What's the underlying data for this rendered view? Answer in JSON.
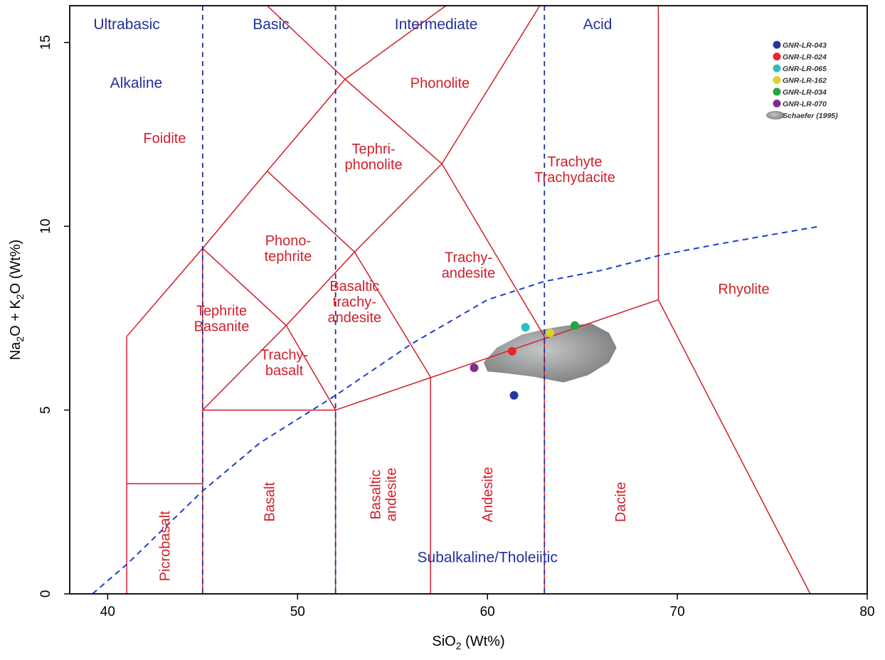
{
  "chart_data": {
    "type": "scatter",
    "title": "",
    "xlabel": {
      "base": "SiO",
      "sub": "2",
      "unit": " (Wt%)"
    },
    "ylabel": {
      "p1": "Na",
      "s1": "2",
      "p2": "O + K",
      "s2": "2",
      "p3": "O (Wt%)"
    },
    "xlim": [
      38,
      80
    ],
    "ylim": [
      0,
      16
    ],
    "xticks": [
      40,
      50,
      60,
      70,
      80
    ],
    "yticks": [
      0,
      5,
      10,
      15
    ],
    "grid": false,
    "legend_position": "top-right",
    "series": [
      {
        "name": "GNR-LR-043",
        "color": "#23389e",
        "x": 61.4,
        "y": 5.4
      },
      {
        "name": "GNR-LR-024",
        "color": "#e8262b",
        "x": 61.3,
        "y": 6.6
      },
      {
        "name": "GNR-LR-065",
        "color": "#2bbcc4",
        "x": 62.0,
        "y": 7.25
      },
      {
        "name": "GNR-LR-162",
        "color": "#d8d42c",
        "x": 63.3,
        "y": 7.1
      },
      {
        "name": "GNR-LR-034",
        "color": "#22a83c",
        "x": 64.6,
        "y": 7.3
      },
      {
        "name": "GNR-LR-070",
        "color": "#7a2f94",
        "x": 59.3,
        "y": 6.15
      }
    ],
    "reference_field": {
      "name": "Schaefer (1995)",
      "color": "#7d7f80",
      "polygon": [
        [
          59.8,
          6.3
        ],
        [
          60.5,
          6.7
        ],
        [
          61.8,
          7.05
        ],
        [
          63.0,
          7.2
        ],
        [
          64.2,
          7.3
        ],
        [
          65.5,
          7.35
        ],
        [
          66.4,
          7.1
        ],
        [
          66.8,
          6.7
        ],
        [
          66.4,
          6.3
        ],
        [
          65.3,
          5.95
        ],
        [
          64.0,
          5.75
        ],
        [
          62.5,
          5.9
        ],
        [
          61.0,
          6.0
        ],
        [
          60.0,
          6.05
        ]
      ]
    },
    "alkaline_subalkaline_divide": [
      [
        39.2,
        0
      ],
      [
        41,
        0.8
      ],
      [
        43,
        1.8
      ],
      [
        45,
        2.8
      ],
      [
        48,
        4.1
      ],
      [
        52,
        5.4
      ],
      [
        56,
        6.8
      ],
      [
        60,
        8.0
      ],
      [
        63,
        8.5
      ],
      [
        66,
        8.8
      ],
      [
        69,
        9.2
      ],
      [
        72,
        9.5
      ],
      [
        77.5,
        10.0
      ]
    ],
    "boundaries": [
      [
        [
          41,
          0
        ],
        [
          41,
          7
        ]
      ],
      [
        [
          41,
          3
        ],
        [
          45,
          3
        ]
      ],
      [
        [
          45,
          0
        ],
        [
          45,
          9.4
        ]
      ],
      [
        [
          45,
          5
        ],
        [
          52,
          5
        ]
      ],
      [
        [
          52,
          0
        ],
        [
          52,
          5
        ]
      ],
      [
        [
          52,
          5
        ],
        [
          69,
          8
        ]
      ],
      [
        [
          57,
          0
        ],
        [
          57,
          5.9
        ]
      ],
      [
        [
          63,
          0
        ],
        [
          63,
          7
        ]
      ],
      [
        [
          69,
          8
        ],
        [
          69,
          16
        ]
      ],
      [
        [
          69,
          8
        ],
        [
          77,
          0
        ]
      ],
      [
        [
          41,
          7
        ],
        [
          45,
          9.4
        ]
      ],
      [
        [
          45,
          9.4
        ],
        [
          48.4,
          11.5
        ]
      ],
      [
        [
          48.4,
          11.5
        ],
        [
          52.5,
          14
        ]
      ],
      [
        [
          52.5,
          14
        ],
        [
          61,
          17.2
        ]
      ],
      [
        [
          45,
          5
        ],
        [
          49.4,
          7.3
        ]
      ],
      [
        [
          49.4,
          7.3
        ],
        [
          53,
          9.3
        ]
      ],
      [
        [
          53,
          9.3
        ],
        [
          57.6,
          11.7
        ]
      ],
      [
        [
          57.6,
          11.7
        ],
        [
          63,
          16.2
        ]
      ],
      [
        [
          45,
          9.4
        ],
        [
          49.4,
          7.3
        ]
      ],
      [
        [
          49.4,
          7.3
        ],
        [
          52,
          5
        ]
      ],
      [
        [
          48.4,
          11.5
        ],
        [
          53,
          9.3
        ]
      ],
      [
        [
          53,
          9.3
        ],
        [
          57,
          5.9
        ]
      ],
      [
        [
          57.6,
          11.7
        ],
        [
          63,
          7
        ]
      ],
      [
        [
          52.5,
          14
        ],
        [
          57.6,
          11.7
        ]
      ],
      [
        [
          52.5,
          14
        ],
        [
          48.4,
          16
        ]
      ]
    ],
    "dividers": [
      45,
      52,
      63
    ],
    "rock_labels": [
      {
        "lines": [
          "Foidite"
        ],
        "x": 43,
        "y": 12.4
      },
      {
        "lines": [
          "Phonolite"
        ],
        "x": 57.5,
        "y": 13.9
      },
      {
        "lines": [
          "Tephri-",
          "phonolite"
        ],
        "x": 54,
        "y": 11.9
      },
      {
        "lines": [
          "Trachyte",
          "Trachydacite"
        ],
        "x": 64.6,
        "y": 11.55
      },
      {
        "lines": [
          "Phono-",
          "tephrite"
        ],
        "x": 49.5,
        "y": 9.4
      },
      {
        "lines": [
          "Trachy-",
          "andesite"
        ],
        "x": 59,
        "y": 8.95
      },
      {
        "lines": [
          "Rhyolite"
        ],
        "x": 73.5,
        "y": 8.3
      },
      {
        "lines": [
          "Tephrite",
          "Basanite"
        ],
        "x": 46,
        "y": 7.5
      },
      {
        "lines": [
          "Basaltic",
          "trachy-",
          "andesite"
        ],
        "x": 53,
        "y": 7.95
      },
      {
        "lines": [
          "Trachy-",
          "basalt"
        ],
        "x": 49.3,
        "y": 6.3
      },
      {
        "lines": [
          "Picrobasalt"
        ],
        "x": 43,
        "y": 1.3,
        "rotate": true
      },
      {
        "lines": [
          "Basalt"
        ],
        "x": 48.5,
        "y": 2.5,
        "rotate": true
      },
      {
        "lines": [
          "Basaltic",
          "andesite"
        ],
        "x": 54.5,
        "y": 2.7,
        "rotate": true
      },
      {
        "lines": [
          "Andesite"
        ],
        "x": 60,
        "y": 2.7,
        "rotate": true
      },
      {
        "lines": [
          "Dacite"
        ],
        "x": 67,
        "y": 2.5,
        "rotate": true
      }
    ],
    "series_labels": [
      {
        "text": "Ultrabasic",
        "x": 41,
        "y": 15.5
      },
      {
        "text": "Basic",
        "x": 48.6,
        "y": 15.5
      },
      {
        "text": "Intermediate",
        "x": 57.3,
        "y": 15.5
      },
      {
        "text": "Acid",
        "x": 65.8,
        "y": 15.5
      },
      {
        "text": "Alkaline",
        "x": 41.5,
        "y": 13.9
      },
      {
        "text": "Subalkaline/Tholeiitic",
        "x": 60,
        "y": 1
      }
    ]
  }
}
